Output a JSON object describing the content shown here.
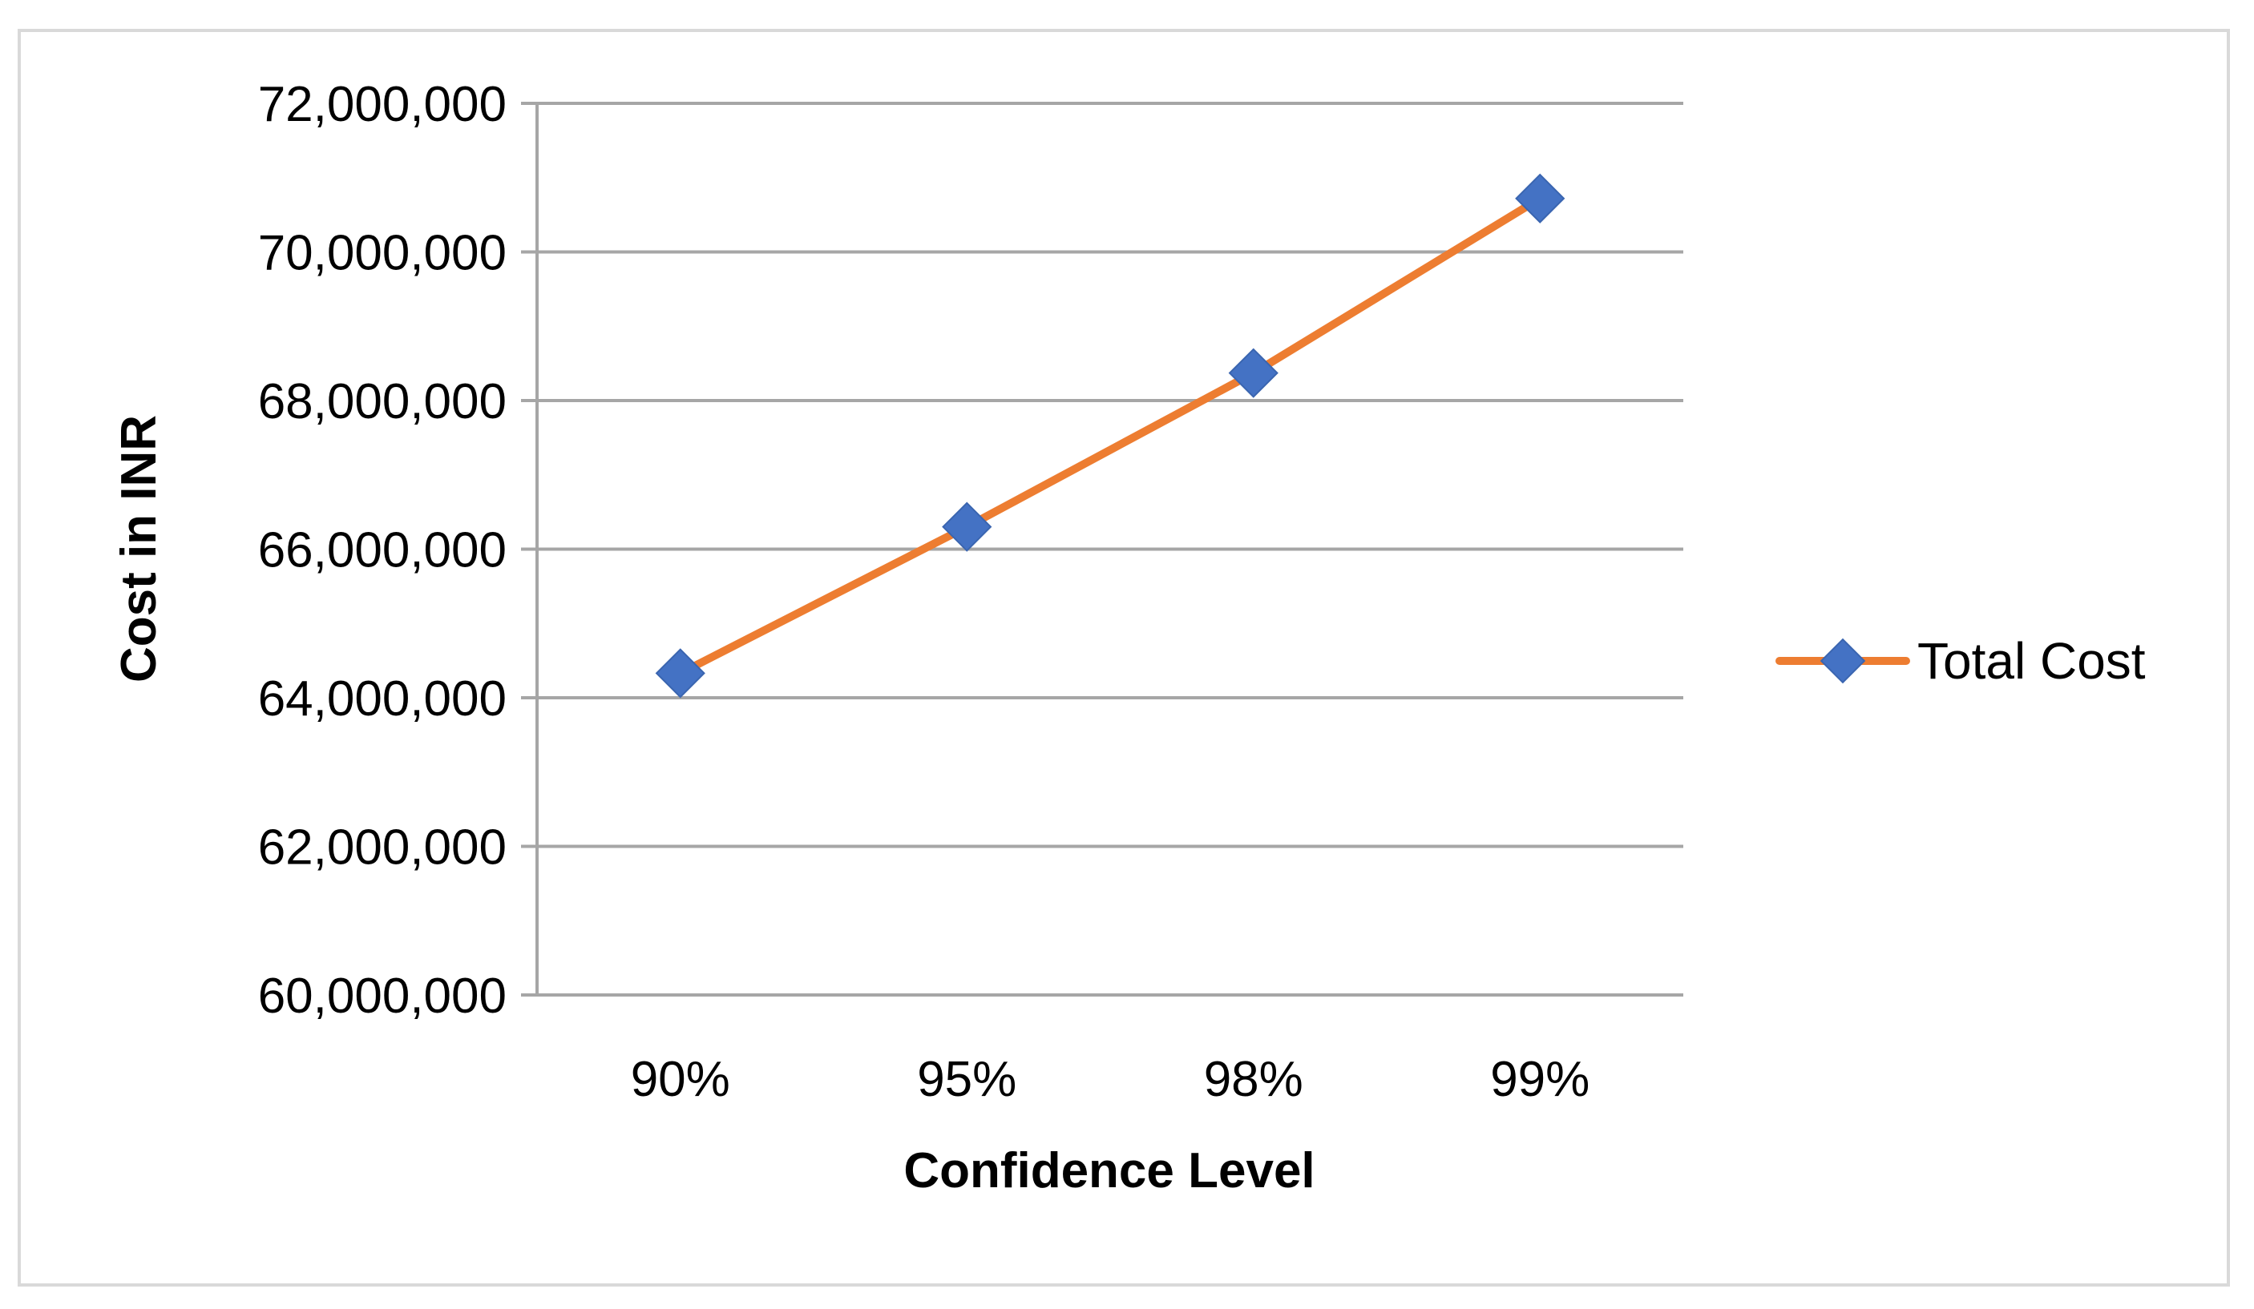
{
  "chart_data": {
    "type": "line",
    "categories": [
      "90%",
      "95%",
      "98%",
      "99%"
    ],
    "series": [
      {
        "name": "Total Cost",
        "values": [
          64330000,
          66300000,
          68370000,
          70720000
        ],
        "line_color": "#ED7D31",
        "marker_color": "#4472C4",
        "marker": "diamond"
      }
    ],
    "xlabel": "Confidence Level",
    "ylabel": "Cost in INR",
    "ylim": [
      60000000,
      72000000
    ],
    "yticks": [
      60000000,
      62000000,
      64000000,
      66000000,
      68000000,
      70000000,
      72000000
    ],
    "ytick_labels": [
      "60,000,000",
      "62,000,000",
      "64,000,000",
      "66,000,000",
      "68,000,000",
      "70,000,000",
      "72,000,000"
    ],
    "grid": true,
    "legend": "right",
    "gridline_color": "#A6A6A6"
  }
}
